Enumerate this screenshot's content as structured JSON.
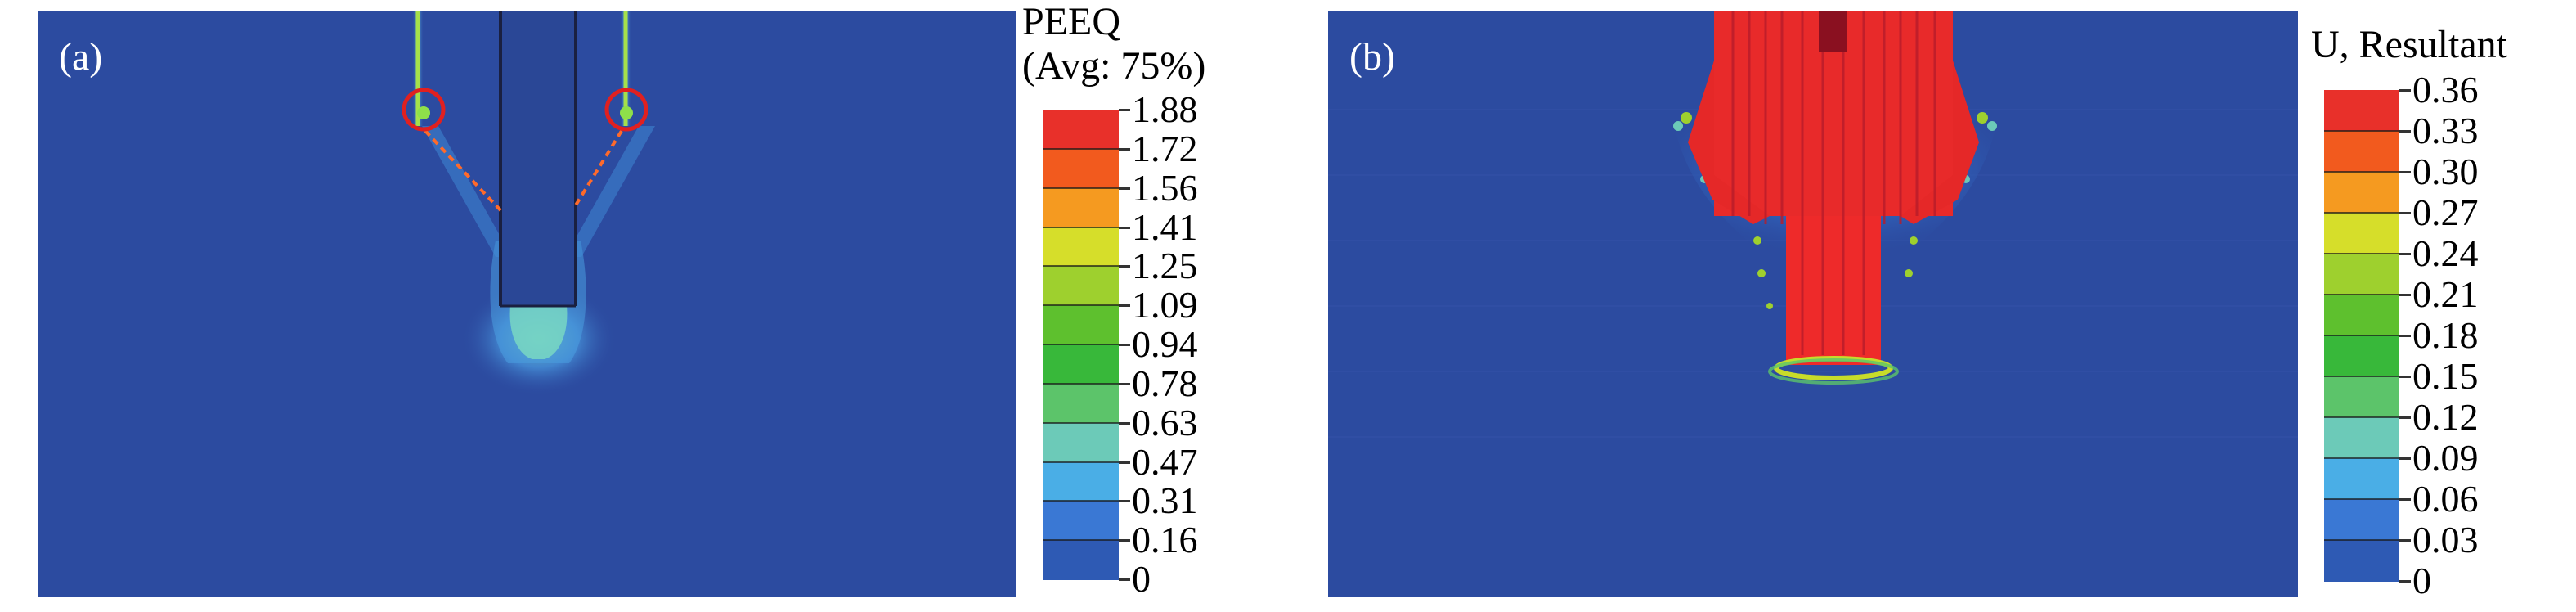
{
  "panel_a": {
    "label": "(a)",
    "legend_title_line1": "PEEQ",
    "legend_title_line2": "(Avg: 75%)",
    "ticks": [
      "1.88",
      "1.72",
      "1.56",
      "1.41",
      "1.25",
      "1.09",
      "0.94",
      "0.78",
      "0.63",
      "0.47",
      "0.31",
      "0.16",
      "0"
    ]
  },
  "panel_b": {
    "label": "(b)",
    "legend_title": "U, Resultant",
    "ticks": [
      "0.36",
      "0.33",
      "0.30",
      "0.27",
      "0.24",
      "0.21",
      "0.18",
      "0.15",
      "0.12",
      "0.09",
      "0.06",
      "0.03",
      "0"
    ]
  },
  "colorbar_colors": [
    "#e8302a",
    "#f25a1e",
    "#f59a20",
    "#d6de2a",
    "#9ed02e",
    "#5ec02e",
    "#38b83a",
    "#5cc46a",
    "#6ccab8",
    "#4aaee6",
    "#3a78d4",
    "#2e5ab4"
  ],
  "colors": {
    "field_background": "#2c4ba0",
    "highlight_circle": "#e02020",
    "guide_line": "#ff6a2a"
  }
}
